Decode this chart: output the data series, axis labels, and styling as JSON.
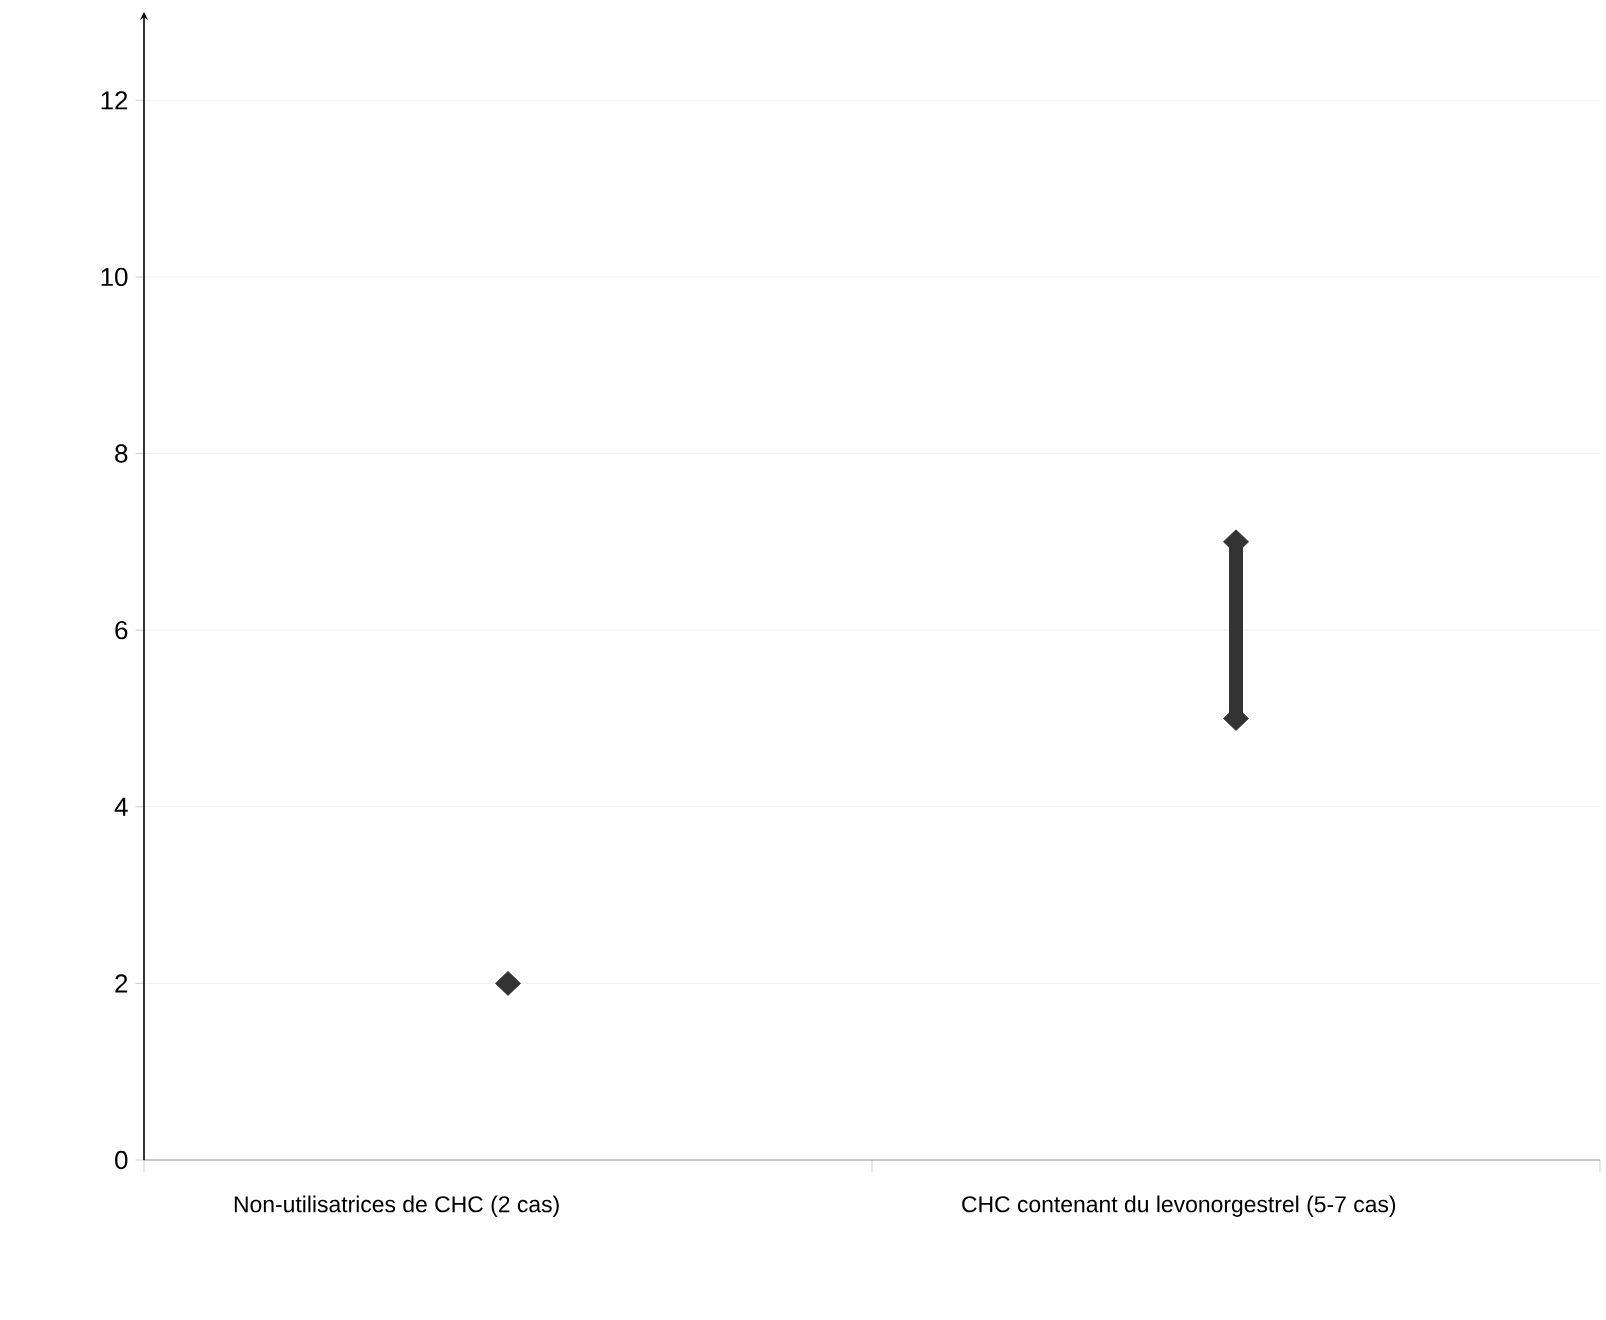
{
  "chart_data": {
    "type": "scatter",
    "categories": [
      "Non-utilisatrices de CHC (2 cas)",
      "CHC contenant du levonorgestrel (5-7 cas)"
    ],
    "series": [
      {
        "type": "bar",
        "color": "#333333",
        "base": [
          null,
          5
        ],
        "values": [
          null,
          2
        ]
      },
      {
        "color": "#333333",
        "values": [
          2,
          5
        ]
      },
      {
        "color": "#333333",
        "values": [
          null,
          7
        ]
      }
    ],
    "ylim": [
      0,
      13
    ],
    "yticks": [
      0,
      2,
      4,
      6,
      8,
      10,
      12
    ],
    "grid": "y",
    "marker": "diamond"
  }
}
